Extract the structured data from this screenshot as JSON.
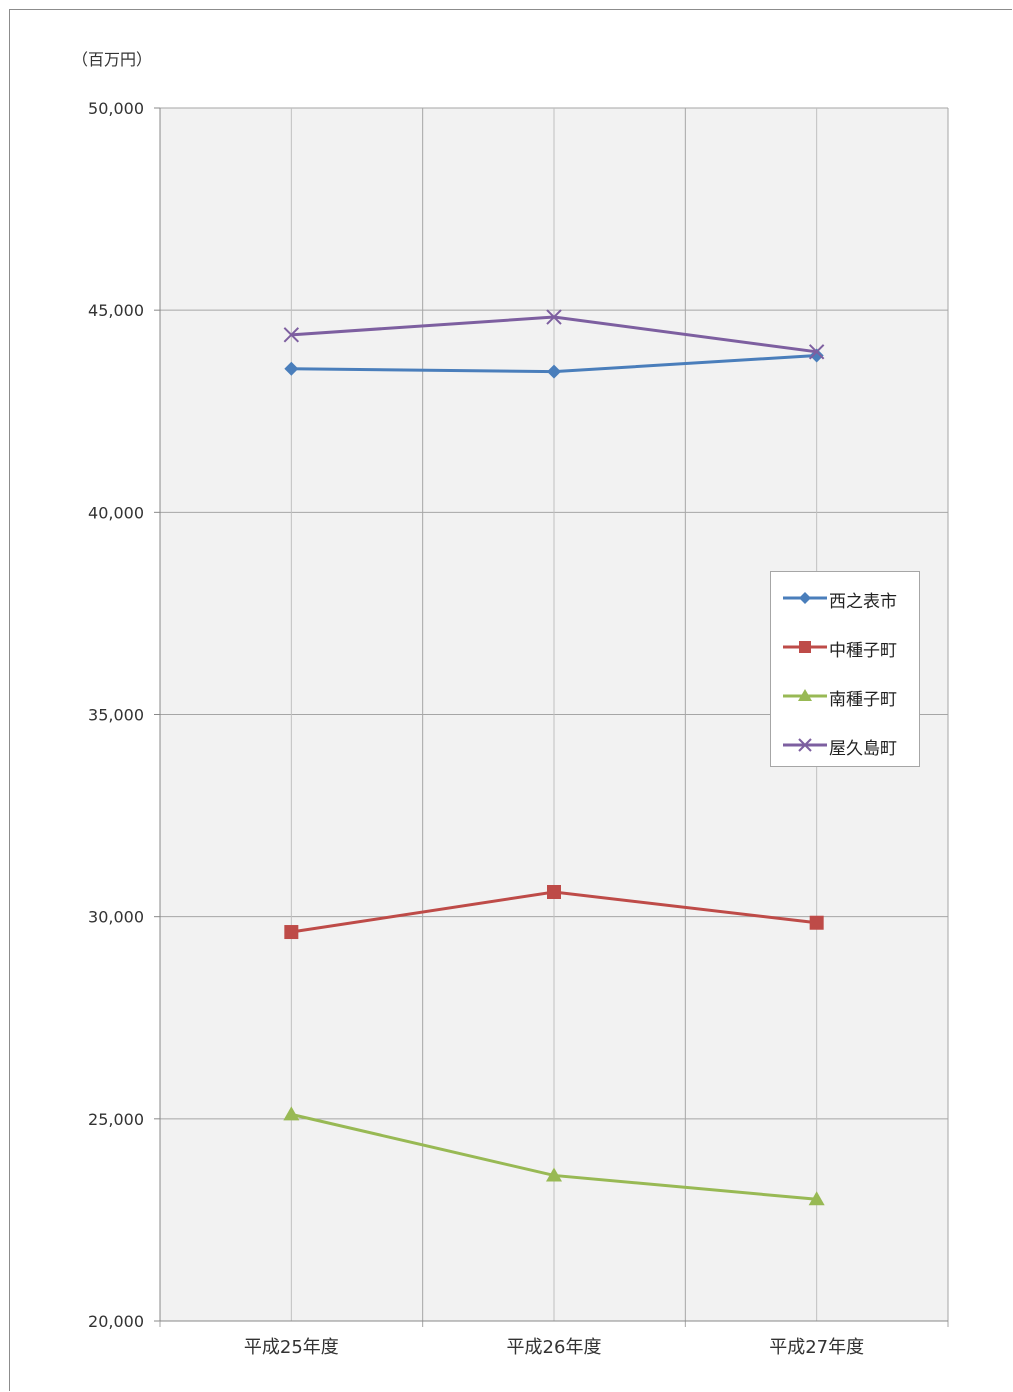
{
  "chart_data": {
    "type": "line",
    "unit_label": "（百万円）",
    "categories": [
      "平成25年度",
      "平成26年度",
      "平成27年度"
    ],
    "ylim": [
      20000,
      50000
    ],
    "yticks": [
      20000,
      25000,
      30000,
      35000,
      40000,
      45000,
      50000
    ],
    "ytick_labels": [
      "20,000",
      "25,000",
      "30,000",
      "35,000",
      "40,000",
      "45,000",
      "50,000"
    ],
    "grid": true,
    "legend_position": "right",
    "series": [
      {
        "name": "西之表市",
        "values": [
          43550,
          43480,
          43880
        ],
        "color": "#4a7ebb",
        "marker": "diamond"
      },
      {
        "name": "中種子町",
        "values": [
          29620,
          30610,
          29850
        ],
        "color": "#be4b48",
        "marker": "square"
      },
      {
        "name": "南種子町",
        "values": [
          25110,
          23600,
          23010
        ],
        "color": "#98b954",
        "marker": "triangle"
      },
      {
        "name": "屋久島町",
        "values": [
          44390,
          44830,
          43970
        ],
        "color": "#7d5fa0",
        "marker": "x"
      }
    ]
  }
}
